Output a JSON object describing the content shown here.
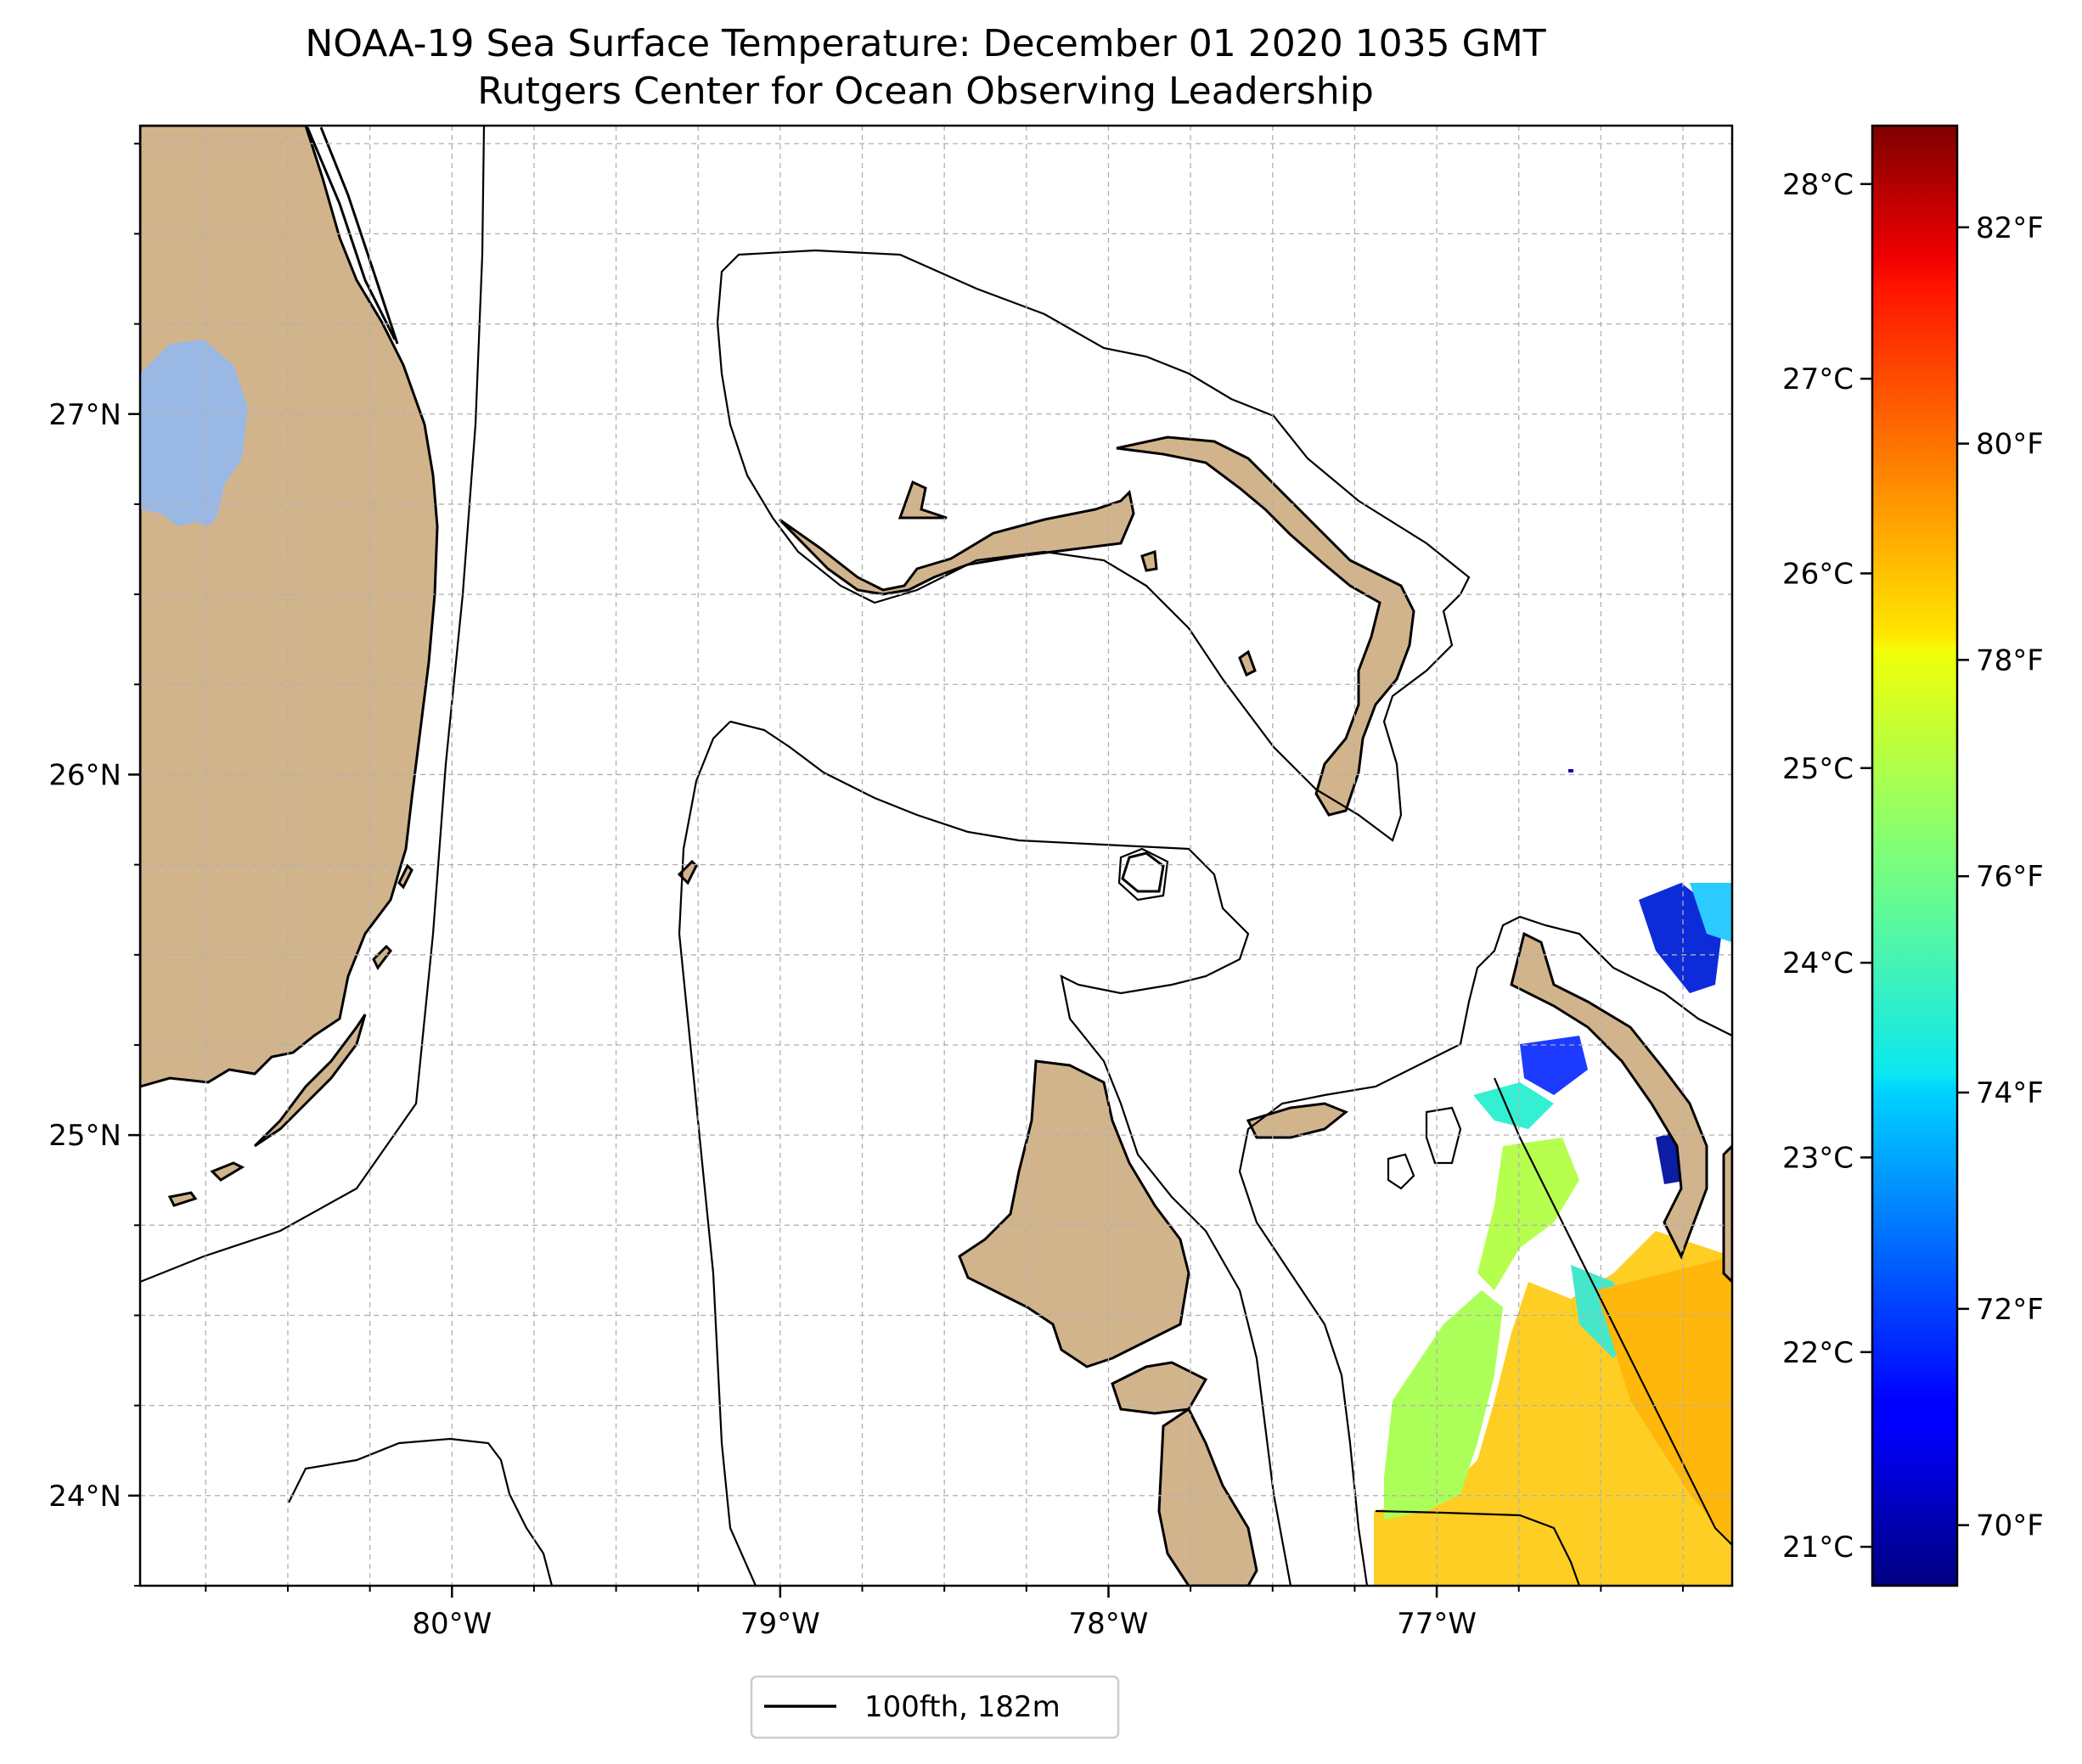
{
  "title": {
    "line1": "NOAA-19 Sea Surface Temperature: December 01 2020 1035 GMT",
    "line2": "Rutgers Center for Ocean Observing Leadership"
  },
  "map": {
    "lon_range": [
      -80.95,
      -76.1
    ],
    "lat_range": [
      23.75,
      27.8
    ],
    "lon_ticks": [
      {
        "value": -80,
        "label": "80°W"
      },
      {
        "value": -79,
        "label": "79°W"
      },
      {
        "value": -78,
        "label": "78°W"
      },
      {
        "value": -77,
        "label": "77°W"
      }
    ],
    "lat_ticks": [
      {
        "value": 24,
        "label": "24°N"
      },
      {
        "value": 25,
        "label": "25°N"
      },
      {
        "value": 26,
        "label": "26°N"
      },
      {
        "value": 27,
        "label": "27°N"
      }
    ],
    "grid": true,
    "land_color": "#d2b48c",
    "lake_color": "#9ab8e4",
    "contour_legend": "100fth, 182m",
    "legend_position": "bottom-center"
  },
  "colorbar": {
    "colormap": "jet",
    "range_c": [
      20.8,
      28.3
    ],
    "celsius_ticks": [
      {
        "value": 21,
        "label": "21°C"
      },
      {
        "value": 22,
        "label": "22°C"
      },
      {
        "value": 23,
        "label": "23°C"
      },
      {
        "value": 24,
        "label": "24°C"
      },
      {
        "value": 25,
        "label": "25°C"
      },
      {
        "value": 26,
        "label": "26°C"
      },
      {
        "value": 27,
        "label": "27°C"
      },
      {
        "value": 28,
        "label": "28°C"
      }
    ],
    "fahrenheit_ticks": [
      {
        "value": 70,
        "label": "70°F"
      },
      {
        "value": 72,
        "label": "72°F"
      },
      {
        "value": 74,
        "label": "74°F"
      },
      {
        "value": 76,
        "label": "76°F"
      },
      {
        "value": 78,
        "label": "78°F"
      },
      {
        "value": 80,
        "label": "80°F"
      },
      {
        "value": 82,
        "label": "82°F"
      }
    ]
  }
}
